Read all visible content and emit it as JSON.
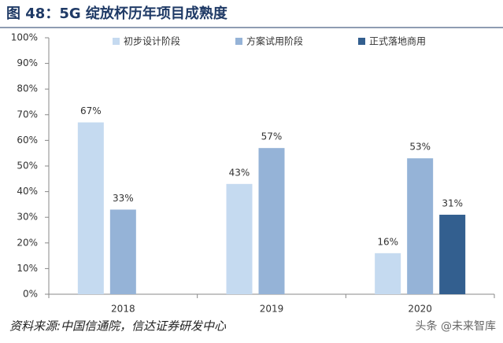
{
  "chart_data": {
    "type": "bar",
    "title": "图 48：5G 绽放杯历年项目成熟度",
    "categories": [
      "2018",
      "2019",
      "2020"
    ],
    "series": [
      {
        "name": "初步设计阶段",
        "color": "#c5daf0",
        "values": [
          67,
          43,
          16
        ],
        "value_labels": [
          "67%",
          "43%",
          "16%"
        ]
      },
      {
        "name": "方案试用阶段",
        "color": "#95b3d7",
        "values": [
          33,
          57,
          53
        ],
        "value_labels": [
          "33%",
          "57%",
          "53%"
        ]
      },
      {
        "name": "正式落地商用",
        "color": "#335f8f",
        "values": [
          null,
          null,
          31
        ],
        "value_labels": [
          null,
          null,
          "31%"
        ]
      }
    ],
    "ylim": [
      0,
      100
    ],
    "yticks": [
      {
        "value": 0,
        "label": "0%"
      },
      {
        "value": 10,
        "label": "10%"
      },
      {
        "value": 20,
        "label": "20%"
      },
      {
        "value": 30,
        "label": "30%"
      },
      {
        "value": 40,
        "label": "40%"
      },
      {
        "value": 50,
        "label": "50%"
      },
      {
        "value": 60,
        "label": "60%"
      },
      {
        "value": 70,
        "label": "70%"
      },
      {
        "value": 80,
        "label": "80%"
      },
      {
        "value": 90,
        "label": "90%"
      },
      {
        "value": 100,
        "label": "100%"
      }
    ],
    "grid": false,
    "legend": "top",
    "source": "资料来源:中国信通院，信达证券研发中心"
  },
  "watermark": "头条 @未来智库"
}
